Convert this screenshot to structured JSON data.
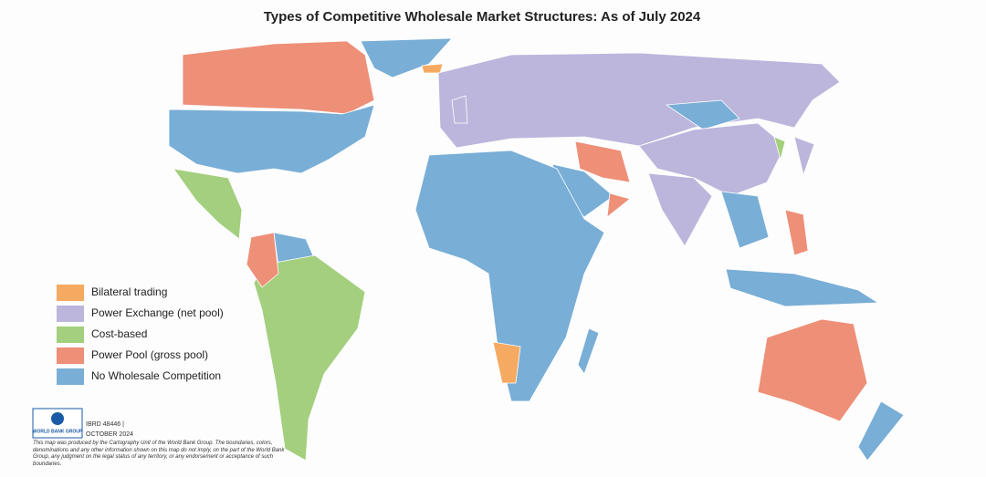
{
  "header": {
    "title": "Types of Competitive Wholesale Market Structures: As of July 2024"
  },
  "legend": {
    "items": [
      {
        "label": "Bilateral trading",
        "color": "#f6a961"
      },
      {
        "label": "Power Exchange (net pool)",
        "color": "#bcb6dc"
      },
      {
        "label": "Cost-based",
        "color": "#a3cf7e"
      },
      {
        "label": "Power Pool (gross pool)",
        "color": "#ee8f78"
      },
      {
        "label": "No Wholesale Competition",
        "color": "#79aed6"
      }
    ]
  },
  "logo": {
    "text": "WORLD BANK GROUP"
  },
  "footer": {
    "id": "IBRD 48446 |",
    "date": "OCTOBER 2024",
    "disclaimer": "This map was produced by the Cartography Unit of the World Bank Group. The boundaries, colors, denominations and any other information shown on this map do not imply, on the part of the World Bank Group, any judgment on the legal status of any territory, or any endorsement or acceptance of such boundaries."
  }
}
